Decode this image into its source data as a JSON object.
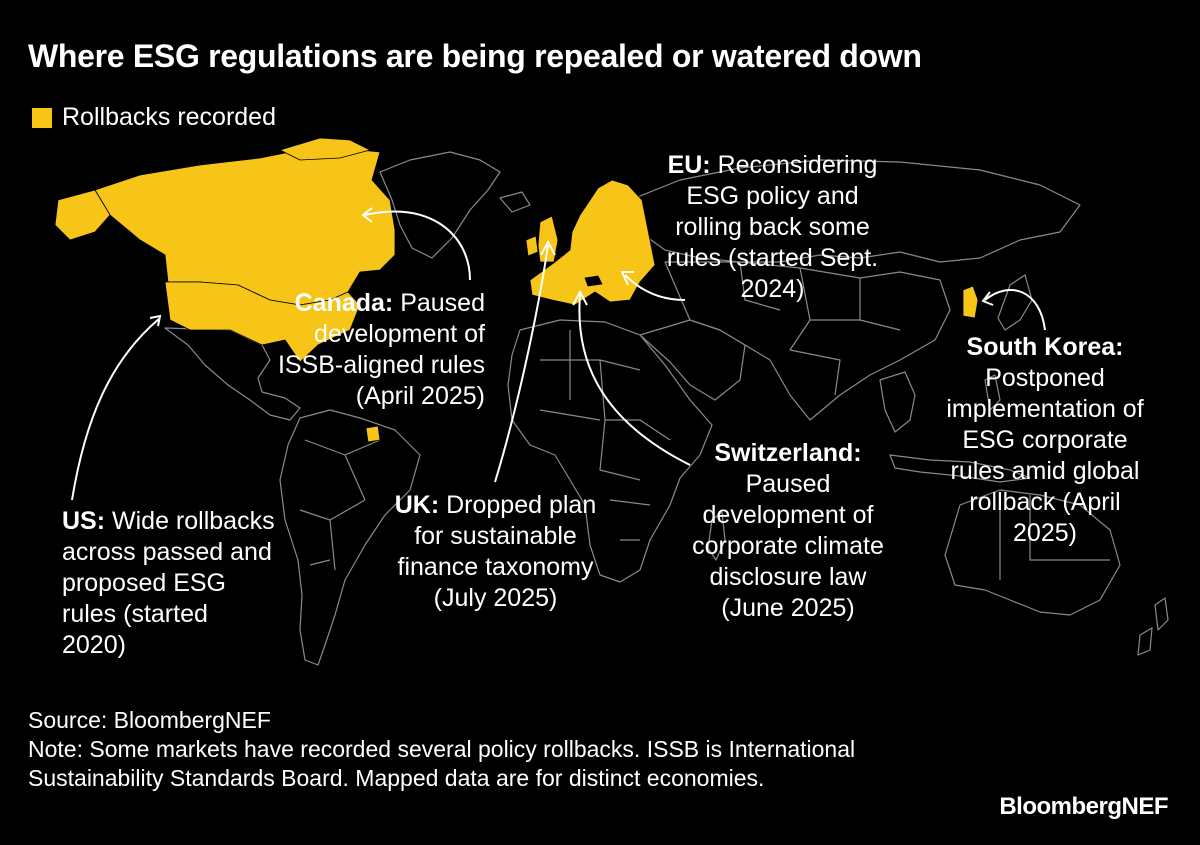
{
  "title": "Where ESG regulations are being repealed or watered down",
  "legend": {
    "label": "Rollbacks recorded",
    "color": "#F6C517"
  },
  "colors": {
    "background": "#000000",
    "land": "#000000",
    "border": "#8a8a8a",
    "highlight": "#F6C517",
    "text": "#FFFFFF"
  },
  "annotations": {
    "canada": {
      "name": "Canada:",
      "lines": [
        "Paused",
        "development of",
        "ISSB-aligned rules",
        "(April 2025)"
      ]
    },
    "us": {
      "name": "US:",
      "lines": [
        "Wide rollbacks",
        "across passed and",
        "proposed ESG",
        "rules (started",
        "2020)"
      ]
    },
    "eu": {
      "name": "EU:",
      "lines": [
        "Reconsidering",
        "ESG policy and",
        "rolling back some",
        "rules (started Sept.",
        "2024)"
      ]
    },
    "uk": {
      "name": "UK:",
      "lines": [
        "Dropped plan",
        "for sustainable",
        "finance taxonomy",
        "(July 2025)"
      ]
    },
    "switzerland": {
      "name": "Switzerland:",
      "lines": [
        "Paused",
        "development of",
        "corporate climate",
        "disclosure law",
        "(June 2025)"
      ]
    },
    "south_korea": {
      "name": "South Korea:",
      "lines": [
        "Postponed",
        "implementation of",
        "ESG corporate",
        "rules amid global",
        "rollback (April",
        "2025)"
      ]
    }
  },
  "footer": {
    "source": "Source: BloombergNEF",
    "note": "Note: Some markets have recorded several policy rollbacks. ISSB is International Sustainability Standards Board. Mapped data are for distinct economies.",
    "brand": "BloombergNEF"
  }
}
